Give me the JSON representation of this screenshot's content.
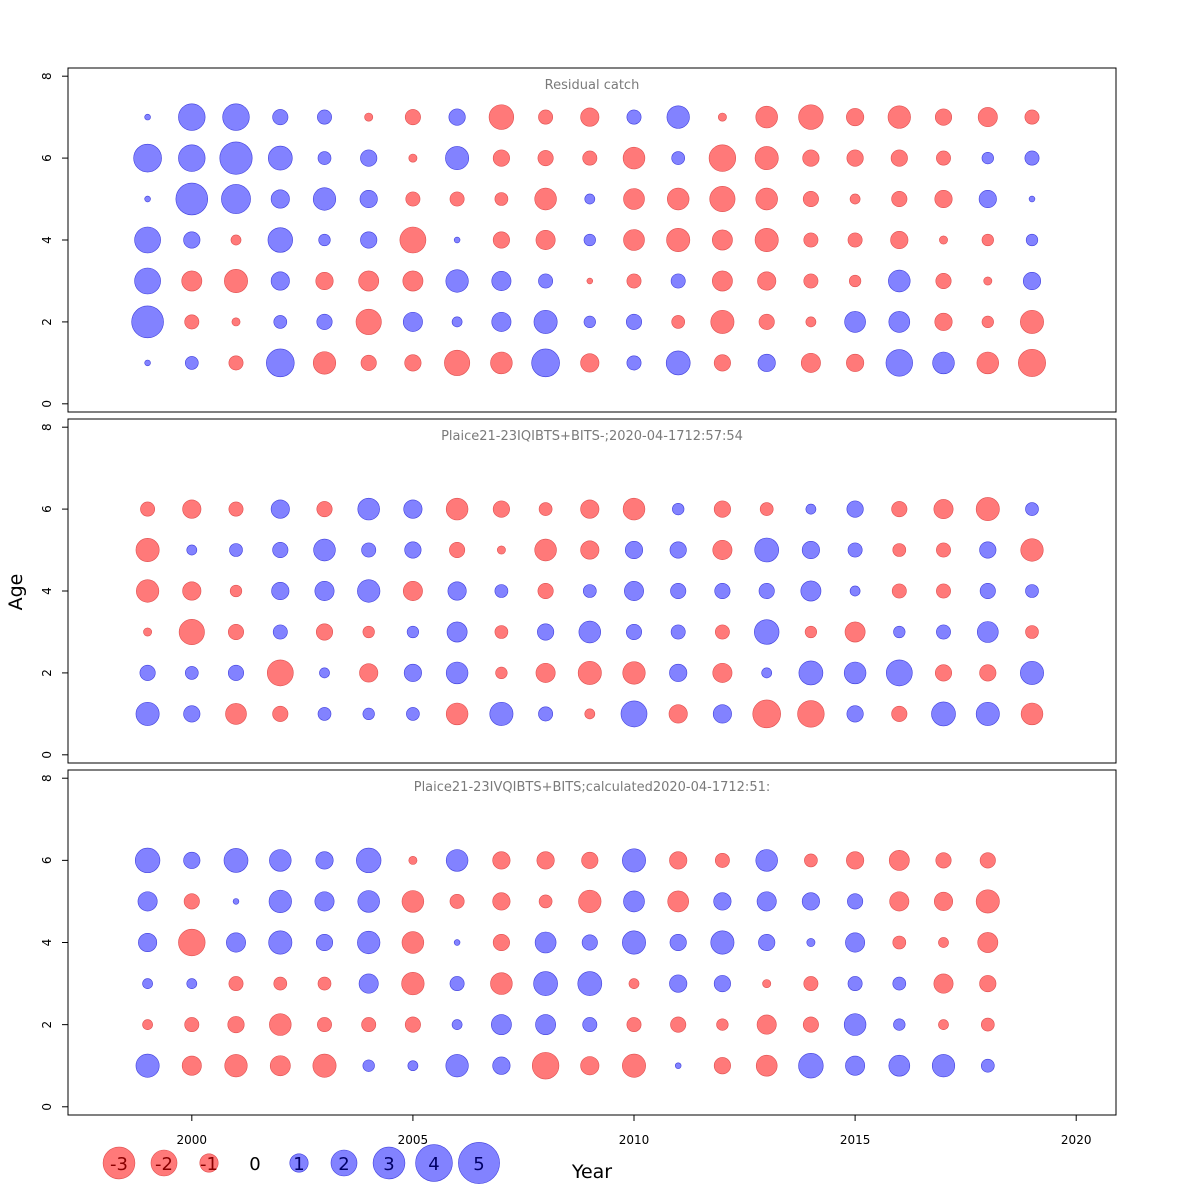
{
  "chart_data": {
    "type": "scatter",
    "subtype": "bubble",
    "xlabel": "Year",
    "ylabel": "Age",
    "xlim": [
      1997.2,
      2020.9
    ],
    "ylim": [
      -0.2,
      8.2
    ],
    "x_ticks": [
      2000,
      2005,
      2010,
      2015,
      2020
    ],
    "y_ticks": [
      0,
      2,
      4,
      6,
      8
    ],
    "colors": {
      "positive": "#6666ff",
      "negative": "#ff5c5c",
      "stroke_positive": "#4040dd",
      "stroke_negative": "#e05050"
    },
    "legend": {
      "placement": "bottom-left",
      "values": [
        -3,
        -2,
        -1,
        0,
        1,
        2,
        3,
        4,
        5
      ]
    },
    "panels": [
      {
        "title": "Residual catch",
        "years": [
          1999,
          2000,
          2001,
          2002,
          2003,
          2004,
          2005,
          2006,
          2007,
          2008,
          2009,
          2010,
          2011,
          2012,
          2013,
          2014,
          2015,
          2016,
          2017,
          2018,
          2019
        ],
        "ages": [
          1,
          2,
          3,
          4,
          5,
          6,
          7
        ],
        "residuals": [
          [
            0.1,
            0.5,
            -0.6,
            2.3,
            -1.5,
            -0.7,
            -0.8,
            -1.9,
            -1.4,
            2.3,
            -1.0,
            0.6,
            1.7,
            -0.8,
            0.9,
            -1.1,
            -0.9,
            2.1,
            1.4,
            -1.4,
            -2.2
          ],
          [
            3.0,
            -0.6,
            -0.2,
            0.5,
            0.7,
            -1.9,
            1.1,
            0.3,
            1.1,
            1.6,
            0.4,
            0.7,
            -0.5,
            -1.6,
            -0.7,
            -0.3,
            1.3,
            1.3,
            -0.9,
            -0.4,
            -1.6
          ],
          [
            2.0,
            -1.2,
            -1.6,
            1.0,
            -0.9,
            -1.2,
            -1.2,
            1.5,
            1.1,
            0.6,
            -0.1,
            -0.6,
            0.6,
            -1.2,
            -1.0,
            -0.6,
            -0.4,
            1.4,
            -0.7,
            -0.2,
            0.9
          ],
          [
            2.0,
            0.8,
            -0.3,
            1.8,
            0.4,
            0.8,
            -2.0,
            0.1,
            -0.8,
            -1.1,
            0.4,
            -1.3,
            -1.6,
            -1.2,
            -1.6,
            -0.6,
            -0.6,
            -0.9,
            -0.2,
            -0.4,
            0.4
          ],
          [
            0.1,
            3.0,
            2.5,
            1.0,
            1.5,
            0.9,
            -0.6,
            -0.6,
            -0.5,
            -1.4,
            0.3,
            -1.3,
            -1.4,
            -1.9,
            -1.4,
            -0.7,
            -0.3,
            -0.7,
            -0.9,
            0.9,
            0.1
          ],
          [
            2.3,
            2.1,
            3.1,
            1.7,
            0.5,
            0.8,
            -0.2,
            1.6,
            -0.8,
            -0.7,
            -0.6,
            -1.4,
            0.5,
            -2.1,
            -1.6,
            -0.8,
            -0.8,
            -0.8,
            -0.6,
            0.4,
            0.6
          ],
          [
            0.1,
            2.1,
            2.1,
            0.7,
            0.6,
            -0.2,
            -0.7,
            0.8,
            -1.8,
            -0.6,
            -1.0,
            0.6,
            1.5,
            -0.2,
            -1.4,
            -1.8,
            -0.9,
            -1.5,
            -0.8,
            -1.1,
            -0.6
          ]
        ]
      },
      {
        "title": "Plaice21-23IQIBTS+BITS-;2020-04-1712:57:54",
        "years": [
          1999,
          2000,
          2001,
          2002,
          2003,
          2004,
          2005,
          2006,
          2007,
          2008,
          2009,
          2010,
          2011,
          2012,
          2013,
          2014,
          2015,
          2016,
          2017,
          2018,
          2019
        ],
        "ages": [
          1,
          2,
          3,
          4,
          5,
          6
        ],
        "residuals": [
          [
            1.6,
            0.8,
            -1.3,
            -0.7,
            0.5,
            0.4,
            0.5,
            -1.4,
            1.6,
            0.6,
            -0.3,
            2.0,
            -1.0,
            1.0,
            -2.3,
            -2.1,
            0.8,
            -0.7,
            1.7,
            1.6,
            -1.4
          ],
          [
            0.7,
            0.5,
            0.7,
            -2.0,
            0.3,
            -1.0,
            0.9,
            1.4,
            -0.4,
            -1.1,
            -1.6,
            -1.5,
            0.9,
            -1.1,
            0.3,
            1.7,
            1.4,
            2.0,
            -0.8,
            -0.8,
            1.6
          ],
          [
            -0.2,
            -1.9,
            -0.7,
            0.6,
            -0.8,
            -0.4,
            0.4,
            1.2,
            -0.5,
            0.8,
            1.4,
            0.7,
            0.6,
            -0.6,
            1.8,
            -0.4,
            -1.2,
            0.4,
            0.6,
            1.3,
            -0.5
          ],
          [
            -1.5,
            -1.0,
            -0.4,
            0.9,
            1.1,
            1.5,
            -1.1,
            1.0,
            0.5,
            -0.7,
            0.5,
            1.1,
            0.7,
            0.7,
            0.7,
            1.2,
            0.3,
            -0.6,
            -0.6,
            0.7,
            0.5
          ],
          [
            -1.6,
            0.3,
            0.5,
            0.7,
            1.4,
            0.6,
            0.8,
            -0.7,
            -0.2,
            -1.4,
            -1.0,
            0.9,
            0.8,
            -1.1,
            1.7,
            0.9,
            0.6,
            -0.5,
            -0.6,
            0.8,
            -1.5
          ],
          [
            -0.6,
            -1.0,
            -0.6,
            1.0,
            -0.7,
            1.4,
            1.0,
            -1.4,
            -0.8,
            -0.5,
            -1.0,
            -1.4,
            0.4,
            -0.8,
            -0.5,
            0.3,
            0.8,
            -0.7,
            -1.1,
            -1.6,
            0.5
          ]
        ]
      },
      {
        "title": "Plaice21-23IVQIBTS+BITS;calculated2020-04-1712:51:",
        "years": [
          1999,
          2000,
          2001,
          2002,
          2003,
          2004,
          2005,
          2006,
          2007,
          2008,
          2009,
          2010,
          2011,
          2012,
          2013,
          2014,
          2015,
          2016,
          2017,
          2018
        ],
        "ages": [
          1,
          2,
          3,
          4,
          5,
          6
        ],
        "residuals": [
          [
            1.6,
            -1.1,
            -1.5,
            -1.2,
            -1.6,
            0.4,
            0.3,
            1.5,
            0.9,
            -2.1,
            -1.0,
            -1.6,
            0.1,
            -0.8,
            -1.3,
            1.8,
            1.1,
            1.3,
            1.5,
            0.5
          ],
          [
            -0.3,
            -0.6,
            -0.8,
            -1.4,
            -0.6,
            -0.6,
            -0.7,
            0.3,
            1.2,
            1.2,
            0.6,
            -0.6,
            -0.7,
            -0.4,
            -1.1,
            -0.7,
            1.4,
            0.4,
            -0.3,
            -0.5
          ],
          [
            0.3,
            0.3,
            -0.6,
            -0.5,
            -0.5,
            1.1,
            -1.5,
            0.6,
            -1.4,
            1.7,
            1.7,
            -0.3,
            0.9,
            0.8,
            -0.2,
            -0.6,
            0.6,
            0.5,
            -1.1,
            -0.8
          ],
          [
            1.0,
            -2.1,
            1.1,
            1.6,
            0.8,
            1.5,
            -1.4,
            0.1,
            -0.8,
            1.3,
            0.7,
            1.6,
            0.8,
            1.6,
            0.8,
            0.2,
            1.1,
            -0.5,
            -0.3,
            -1.2
          ],
          [
            1.1,
            -0.7,
            0.1,
            1.5,
            1.1,
            1.4,
            -1.4,
            -0.6,
            -0.9,
            -0.5,
            -1.5,
            1.3,
            -1.3,
            0.9,
            1.1,
            0.9,
            0.7,
            -1.1,
            -1.0,
            -1.6
          ],
          [
            1.8,
            0.8,
            1.7,
            1.4,
            0.9,
            1.8,
            -0.2,
            1.4,
            -0.9,
            -0.9,
            -0.8,
            1.6,
            -0.9,
            -0.6,
            1.4,
            -0.5,
            -0.9,
            -1.2,
            -0.7,
            -0.7
          ]
        ]
      }
    ]
  }
}
